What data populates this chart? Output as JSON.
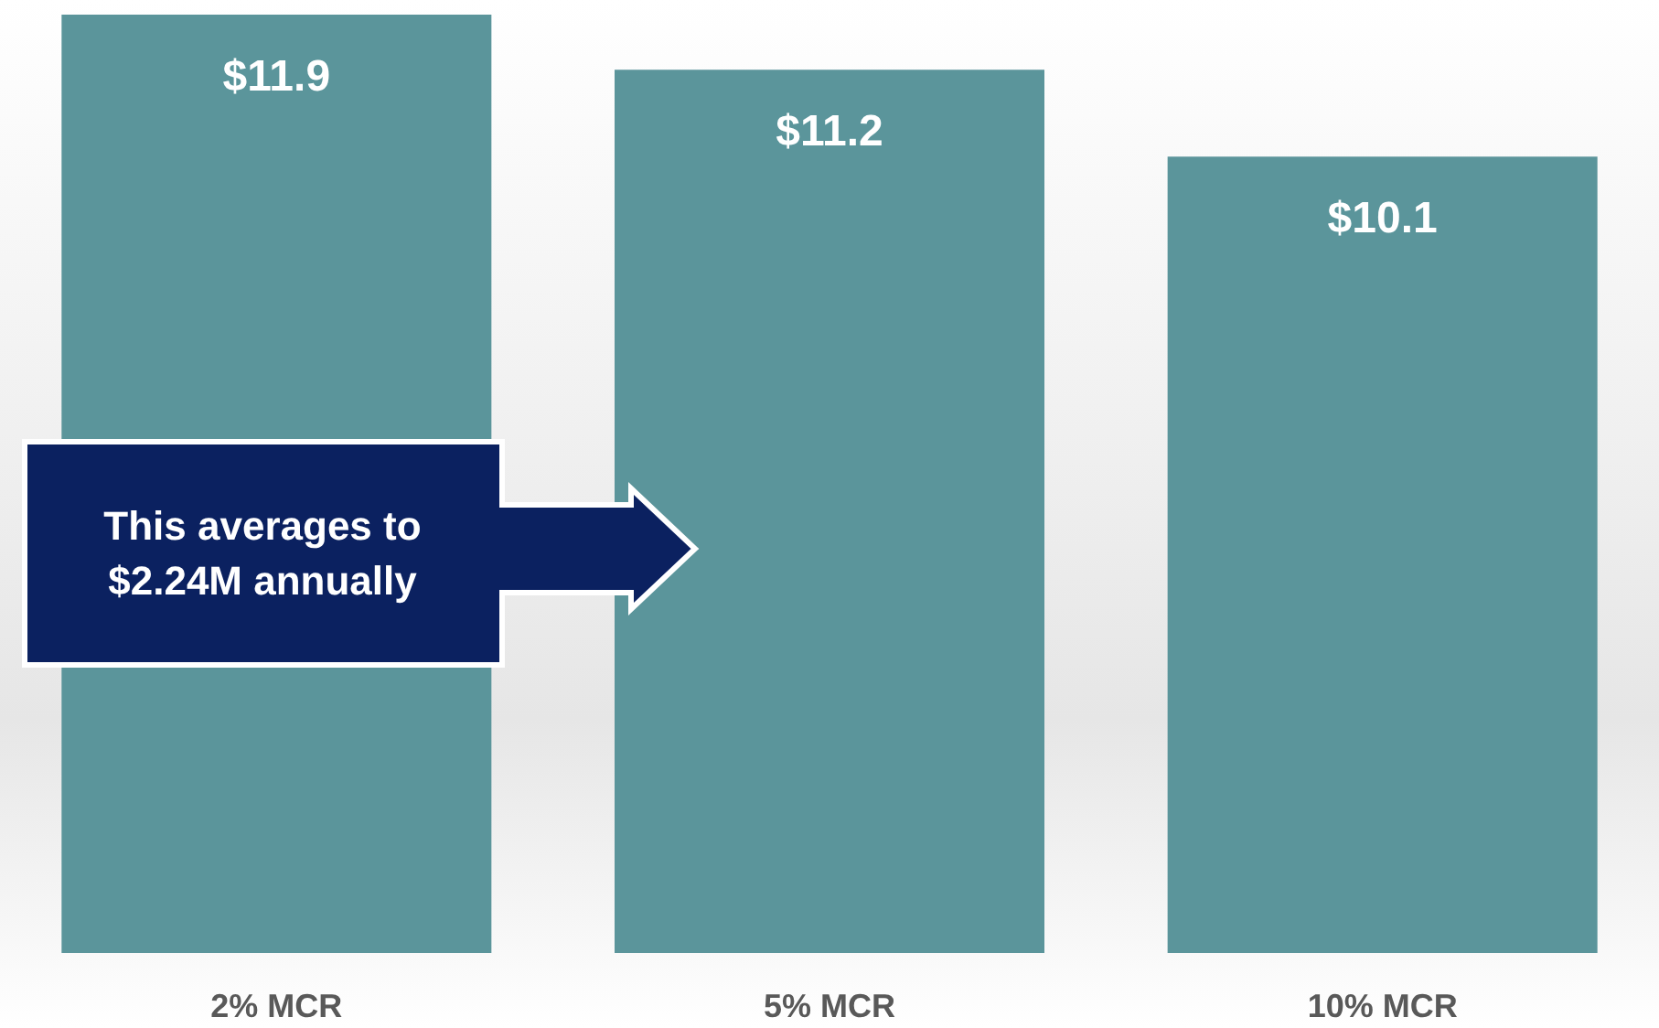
{
  "chart_data": {
    "type": "bar",
    "categories": [
      "2% MCR",
      "5% MCR",
      "10% MCR"
    ],
    "values": [
      11.9,
      11.2,
      10.1
    ],
    "value_labels": [
      "$11.9",
      "$11.2",
      "$10.1"
    ],
    "color": "#5b959b",
    "annotations": [
      "This averages to $2.24M annually"
    ]
  }
}
